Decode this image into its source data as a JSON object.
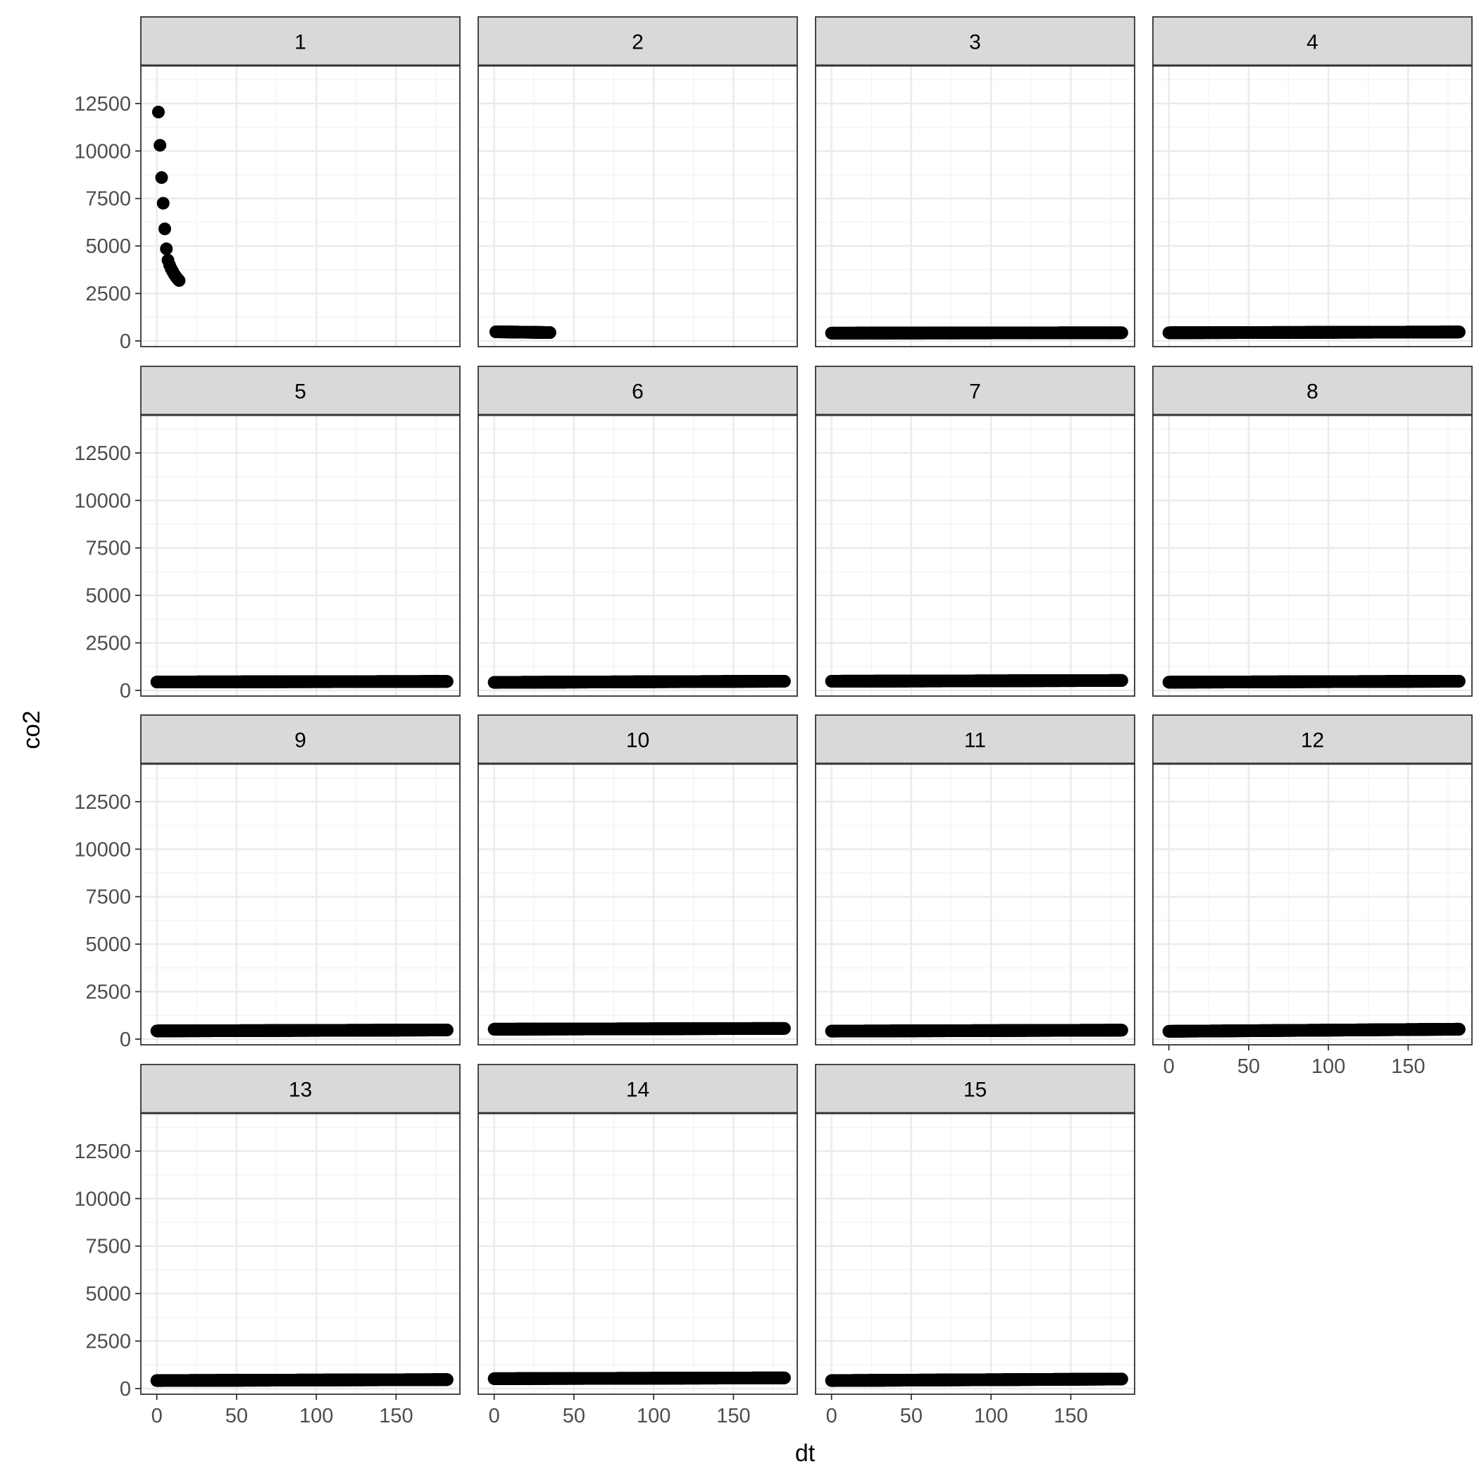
{
  "chart_data": {
    "type": "scatter",
    "layout": "facet_wrap",
    "xlabel": "dt",
    "ylabel": "co2",
    "xlim": [
      -10,
      190
    ],
    "ylim": [
      -300,
      14500
    ],
    "x_ticks": [
      0,
      50,
      100,
      150
    ],
    "y_ticks": [
      0,
      2500,
      5000,
      7500,
      10000,
      12500
    ],
    "x_tick_labels": [
      "0",
      "50",
      "100",
      "150"
    ],
    "y_tick_labels": [
      "0",
      "2500",
      "5000",
      "7500",
      "10000",
      "12500"
    ],
    "grid": true,
    "legend": "none",
    "colors": {
      "point": "#000000",
      "strip_fill": "#d9d9d9",
      "strip_border": "#333333",
      "panel_border": "#333333",
      "grid_major": "#ebebeb",
      "grid_minor": "#f4f4f4",
      "axis_text": "#4d4d4d",
      "title_text": "#000000"
    },
    "panels": [
      {
        "label": "1",
        "points": [
          [
            1,
            12050
          ],
          [
            2,
            10300
          ],
          [
            3,
            8600
          ],
          [
            4,
            7250
          ],
          [
            5,
            5900
          ],
          [
            6,
            4850
          ],
          [
            7,
            4250
          ],
          [
            8,
            4000
          ],
          [
            9,
            3800
          ],
          [
            10,
            3650
          ],
          [
            11,
            3500
          ],
          [
            12,
            3380
          ],
          [
            13,
            3270
          ],
          [
            14,
            3180
          ]
        ]
      },
      {
        "label": "2",
        "x_start": 1,
        "x_end": 35,
        "y_start": 480,
        "y_end": 440
      },
      {
        "label": "3",
        "x_start": 0,
        "x_end": 182,
        "y_start": 410,
        "y_end": 430
      },
      {
        "label": "4",
        "x_start": 0,
        "x_end": 182,
        "y_start": 430,
        "y_end": 470
      },
      {
        "label": "5",
        "x_start": 0,
        "x_end": 182,
        "y_start": 440,
        "y_end": 470
      },
      {
        "label": "6",
        "x_start": 0,
        "x_end": 182,
        "y_start": 420,
        "y_end": 480
      },
      {
        "label": "7",
        "x_start": 0,
        "x_end": 182,
        "y_start": 480,
        "y_end": 520
      },
      {
        "label": "8",
        "x_start": 0,
        "x_end": 182,
        "y_start": 430,
        "y_end": 480
      },
      {
        "label": "9",
        "x_start": 0,
        "x_end": 182,
        "y_start": 430,
        "y_end": 480
      },
      {
        "label": "10",
        "x_start": 0,
        "x_end": 182,
        "y_start": 520,
        "y_end": 560
      },
      {
        "label": "11",
        "x_start": 0,
        "x_end": 182,
        "y_start": 420,
        "y_end": 470
      },
      {
        "label": "12",
        "x_start": 0,
        "x_end": 182,
        "y_start": 410,
        "y_end": 520
      },
      {
        "label": "13",
        "x_start": 0,
        "x_end": 182,
        "y_start": 420,
        "y_end": 470
      },
      {
        "label": "14",
        "x_start": 0,
        "x_end": 182,
        "y_start": 520,
        "y_end": 560
      },
      {
        "label": "15",
        "x_start": 0,
        "x_end": 182,
        "y_start": 420,
        "y_end": 500
      }
    ]
  }
}
